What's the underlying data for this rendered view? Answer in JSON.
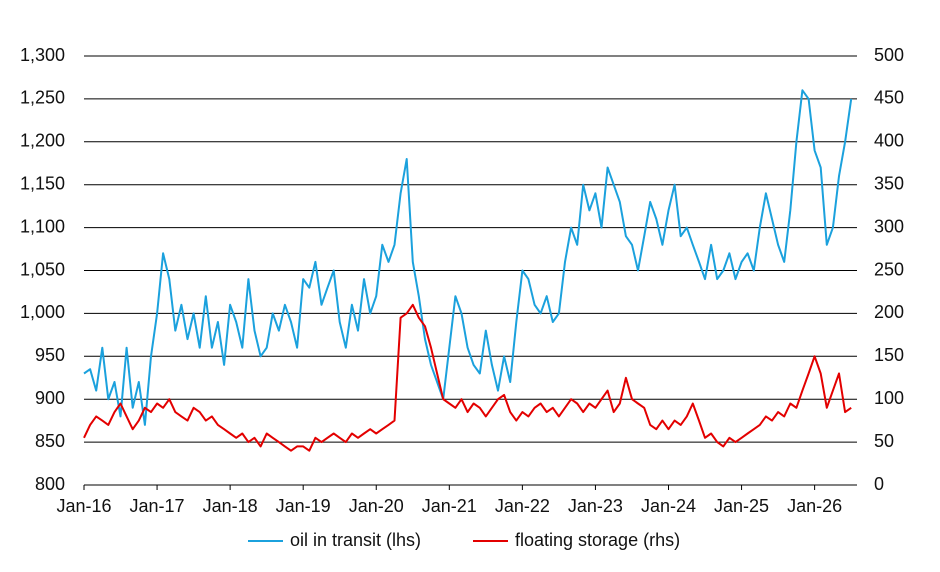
{
  "chart_data": {
    "type": "line",
    "xlim": [
      2016,
      2026.58
    ],
    "xticks": [
      {
        "value": 2016,
        "label": "Jan-16"
      },
      {
        "value": 2017,
        "label": "Jan-17"
      },
      {
        "value": 2018,
        "label": "Jan-18"
      },
      {
        "value": 2019,
        "label": "Jan-19"
      },
      {
        "value": 2020,
        "label": "Jan-20"
      },
      {
        "value": 2021,
        "label": "Jan-21"
      },
      {
        "value": 2022,
        "label": "Jan-22"
      },
      {
        "value": 2023,
        "label": "Jan-23"
      },
      {
        "value": 2024,
        "label": "Jan-24"
      },
      {
        "value": 2025,
        "label": "Jan-25"
      },
      {
        "value": 2026,
        "label": "Jan-26"
      }
    ],
    "ylim": [
      800,
      1300
    ],
    "yticks": [
      800,
      850,
      900,
      950,
      {
        "value": 1000,
        "label": "1,000"
      },
      {
        "value": 1050,
        "label": "1,050"
      },
      {
        "value": 1100,
        "label": "1,100"
      },
      {
        "value": 1150,
        "label": "1,150"
      },
      {
        "value": 1200,
        "label": "1,200"
      },
      {
        "value": 1250,
        "label": "1,250"
      },
      {
        "value": 1300,
        "label": "1,300"
      }
    ],
    "y2lim": [
      0,
      500
    ],
    "y2ticks": [
      0,
      50,
      100,
      150,
      200,
      250,
      300,
      350,
      400,
      450,
      500
    ],
    "grid": true,
    "legend": "bottom",
    "x": [
      2016,
      2016.083,
      2016.167,
      2016.25,
      2016.333,
      2016.417,
      2016.5,
      2016.583,
      2016.667,
      2016.75,
      2016.833,
      2016.917,
      2017,
      2017.083,
      2017.167,
      2017.25,
      2017.333,
      2017.417,
      2017.5,
      2017.583,
      2017.667,
      2017.75,
      2017.833,
      2017.917,
      2018,
      2018.083,
      2018.167,
      2018.25,
      2018.333,
      2018.417,
      2018.5,
      2018.583,
      2018.667,
      2018.75,
      2018.833,
      2018.917,
      2019,
      2019.083,
      2019.167,
      2019.25,
      2019.333,
      2019.417,
      2019.5,
      2019.583,
      2019.667,
      2019.75,
      2019.833,
      2019.917,
      2020,
      2020.083,
      2020.167,
      2020.25,
      2020.333,
      2020.417,
      2020.5,
      2020.583,
      2020.667,
      2020.75,
      2020.833,
      2020.917,
      2021,
      2021.083,
      2021.167,
      2021.25,
      2021.333,
      2021.417,
      2021.5,
      2021.583,
      2021.667,
      2021.75,
      2021.833,
      2021.917,
      2022,
      2022.083,
      2022.167,
      2022.25,
      2022.333,
      2022.417,
      2022.5,
      2022.583,
      2022.667,
      2022.75,
      2022.833,
      2022.917,
      2023,
      2023.083,
      2023.167,
      2023.25,
      2023.333,
      2023.417,
      2023.5,
      2023.583,
      2023.667,
      2023.75,
      2023.833,
      2023.917,
      2024,
      2024.083,
      2024.167,
      2024.25,
      2024.333,
      2024.417,
      2024.5,
      2024.583,
      2024.667,
      2024.75,
      2024.833,
      2024.917,
      2025,
      2025.083,
      2025.167,
      2025.25,
      2025.333,
      2025.417,
      2025.5,
      2025.583,
      2025.667,
      2025.75,
      2025.833,
      2025.917,
      2026,
      2026.083,
      2026.167,
      2026.25,
      2026.333,
      2026.417,
      2026.5
    ],
    "series": [
      {
        "name": "oil in transit (lhs)",
        "color": "#1ba1dd",
        "values": [
          930,
          935,
          910,
          960,
          900,
          920,
          880,
          960,
          890,
          920,
          870,
          950,
          1000,
          1070,
          1040,
          980,
          1010,
          970,
          1000,
          960,
          1020,
          960,
          990,
          940,
          1010,
          990,
          960,
          1040,
          980,
          950,
          960,
          1000,
          980,
          1010,
          990,
          960,
          1040,
          1030,
          1060,
          1010,
          1030,
          1050,
          990,
          960,
          1010,
          980,
          1040,
          1000,
          1020,
          1080,
          1060,
          1080,
          1140,
          1180,
          1060,
          1020,
          970,
          940,
          920,
          900,
          960,
          1020,
          1000,
          960,
          940,
          930,
          980,
          940,
          910,
          950,
          920,
          990,
          1050,
          1040,
          1010,
          1000,
          1020,
          990,
          1000,
          1060,
          1100,
          1080,
          1150,
          1120,
          1140,
          1100,
          1170,
          1150,
          1130,
          1090,
          1080,
          1050,
          1090,
          1130,
          1110,
          1080,
          1120,
          1150,
          1090,
          1100,
          1080,
          1060,
          1040,
          1080,
          1040,
          1050,
          1070,
          1040,
          1060,
          1070,
          1050,
          1100,
          1140,
          1110,
          1080,
          1060,
          1120,
          1200,
          1260,
          1250,
          1190,
          1170,
          1080,
          1100,
          1160,
          1200,
          1250
        ]
      },
      {
        "name": "floating storage (rhs)",
        "color": "#e30000",
        "axis": "y2",
        "values": [
          55,
          70,
          80,
          75,
          70,
          85,
          95,
          80,
          65,
          75,
          90,
          85,
          95,
          90,
          100,
          85,
          80,
          75,
          90,
          85,
          75,
          80,
          70,
          65,
          60,
          55,
          60,
          50,
          55,
          45,
          60,
          55,
          50,
          45,
          40,
          45,
          45,
          40,
          55,
          50,
          55,
          60,
          55,
          50,
          60,
          55,
          60,
          65,
          60,
          65,
          70,
          75,
          195,
          200,
          210,
          195,
          185,
          160,
          130,
          100,
          95,
          90,
          100,
          85,
          95,
          90,
          80,
          90,
          100,
          105,
          85,
          75,
          85,
          80,
          90,
          95,
          85,
          90,
          80,
          90,
          100,
          95,
          85,
          95,
          90,
          100,
          110,
          85,
          95,
          125,
          100,
          95,
          90,
          70,
          65,
          75,
          65,
          75,
          70,
          80,
          95,
          75,
          55,
          60,
          50,
          45,
          55,
          50,
          55,
          60,
          65,
          70,
          80,
          75,
          85,
          80,
          95,
          90,
          110,
          130,
          150,
          130,
          90,
          110,
          130,
          85,
          90
        ]
      }
    ]
  }
}
